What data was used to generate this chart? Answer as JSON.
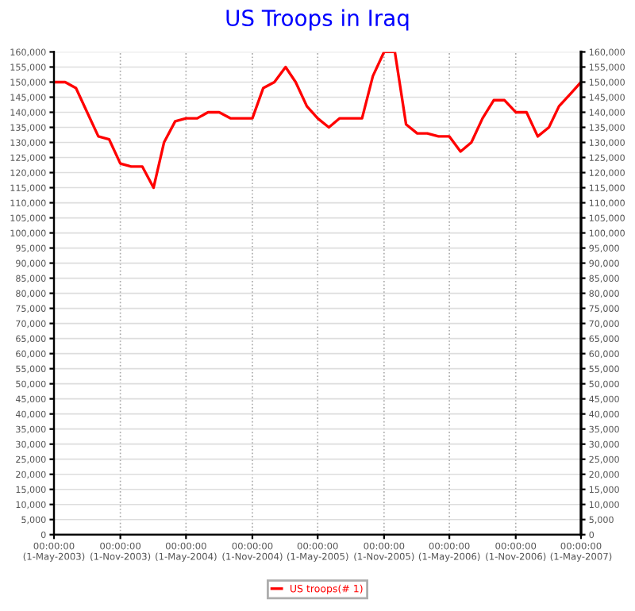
{
  "chart_data": {
    "type": "line",
    "title": "US Troops in Iraq",
    "x": [
      "2003-05",
      "2003-06",
      "2003-07",
      "2003-08",
      "2003-09",
      "2003-10",
      "2003-11",
      "2003-12",
      "2004-01",
      "2004-02",
      "2004-03",
      "2004-04",
      "2004-05",
      "2004-06",
      "2004-07",
      "2004-08",
      "2004-09",
      "2004-10",
      "2004-11",
      "2004-12",
      "2005-01",
      "2005-02",
      "2005-03",
      "2005-04",
      "2005-05",
      "2005-06",
      "2005-07",
      "2005-08",
      "2005-09",
      "2005-10",
      "2005-11",
      "2005-12",
      "2006-01",
      "2006-02",
      "2006-03",
      "2006-04",
      "2006-05",
      "2006-06",
      "2006-07",
      "2006-08",
      "2006-09",
      "2006-10",
      "2006-11",
      "2006-12",
      "2007-01",
      "2007-02",
      "2007-03",
      "2007-04",
      "2007-05"
    ],
    "series": [
      {
        "name": "US troops(# 1)",
        "color": "#ff0000",
        "values": [
          150000,
          150000,
          148000,
          140000,
          132000,
          131000,
          123000,
          122000,
          122000,
          115000,
          130000,
          137000,
          138000,
          138000,
          140000,
          140000,
          138000,
          138000,
          138000,
          148000,
          150000,
          155000,
          150000,
          142000,
          138000,
          135000,
          138000,
          138000,
          138000,
          152000,
          160000,
          160000,
          136000,
          133000,
          133000,
          132000,
          132000,
          127000,
          130000,
          138000,
          144000,
          144000,
          140000,
          140000,
          132000,
          135000,
          142000,
          146000,
          150000
        ]
      }
    ],
    "xlim": [
      "2003-05-01",
      "2007-05-01"
    ],
    "xticks": [
      {
        "value": "2003-05-01",
        "label": "00:00:00\n(1-May-2003)"
      },
      {
        "value": "2003-11-01",
        "label": "00:00:00\n(1-Nov-2003)"
      },
      {
        "value": "2004-05-01",
        "label": "00:00:00\n(1-May-2004)"
      },
      {
        "value": "2004-11-01",
        "label": "00:00:00\n(1-Nov-2004)"
      },
      {
        "value": "2005-05-01",
        "label": "00:00:00\n(1-May-2005)"
      },
      {
        "value": "2005-11-01",
        "label": "00:00:00\n(1-Nov-2005)"
      },
      {
        "value": "2006-05-01",
        "label": "00:00:00\n(1-May-2006)"
      },
      {
        "value": "2006-11-01",
        "label": "00:00:00\n(1-Nov-2006)"
      },
      {
        "value": "2007-05-01",
        "label": "00:00:00\n(1-May-2007)"
      }
    ],
    "ylim": [
      0,
      160000
    ],
    "yticks": [
      0,
      {
        "value": 5000,
        "label": "5,000"
      },
      {
        "value": 10000,
        "label": "10,000"
      },
      {
        "value": 15000,
        "label": "15,000"
      },
      {
        "value": 20000,
        "label": "20,000"
      },
      {
        "value": 25000,
        "label": "25,000"
      },
      {
        "value": 30000,
        "label": "30,000"
      },
      {
        "value": 35000,
        "label": "35,000"
      },
      {
        "value": 40000,
        "label": "40,000"
      },
      {
        "value": 45000,
        "label": "45,000"
      },
      {
        "value": 50000,
        "label": "50,000"
      },
      {
        "value": 55000,
        "label": "55,000"
      },
      {
        "value": 60000,
        "label": "60,000"
      },
      {
        "value": 65000,
        "label": "65,000"
      },
      {
        "value": 70000,
        "label": "70,000"
      },
      {
        "value": 75000,
        "label": "75,000"
      },
      {
        "value": 80000,
        "label": "80,000"
      },
      {
        "value": 85000,
        "label": "85,000"
      },
      {
        "value": 90000,
        "label": "90,000"
      },
      {
        "value": 95000,
        "label": "95,000"
      },
      {
        "value": 100000,
        "label": "100,000"
      },
      {
        "value": 105000,
        "label": "105,000"
      },
      {
        "value": 110000,
        "label": "110,000"
      },
      {
        "value": 115000,
        "label": "115,000"
      },
      {
        "value": 120000,
        "label": "120,000"
      },
      {
        "value": 125000,
        "label": "125,000"
      },
      {
        "value": 130000,
        "label": "130,000"
      },
      {
        "value": 135000,
        "label": "135,000"
      },
      {
        "value": 140000,
        "label": "140,000"
      },
      {
        "value": 145000,
        "label": "145,000"
      },
      {
        "value": 150000,
        "label": "150,000"
      },
      {
        "value": 155000,
        "label": "155,000"
      },
      {
        "value": 160000,
        "label": "160,000"
      }
    ],
    "y2lim": [
      0,
      160000
    ],
    "y2ticks": [
      0,
      {
        "value": 5000,
        "label": "5,000"
      },
      {
        "value": 10000,
        "label": "10,000"
      },
      {
        "value": 15000,
        "label": "15,000"
      },
      {
        "value": 20000,
        "label": "20,000"
      },
      {
        "value": 25000,
        "label": "25,000"
      },
      {
        "value": 30000,
        "label": "30,000"
      },
      {
        "value": 35000,
        "label": "35,000"
      },
      {
        "value": 40000,
        "label": "40,000"
      },
      {
        "value": 45000,
        "label": "45,000"
      },
      {
        "value": 50000,
        "label": "50,000"
      },
      {
        "value": 55000,
        "label": "55,000"
      },
      {
        "value": 60000,
        "label": "60,000"
      },
      {
        "value": 65000,
        "label": "65,000"
      },
      {
        "value": 70000,
        "label": "70,000"
      },
      {
        "value": 75000,
        "label": "75,000"
      },
      {
        "value": 80000,
        "label": "80,000"
      },
      {
        "value": 85000,
        "label": "85,000"
      },
      {
        "value": 90000,
        "label": "90,000"
      },
      {
        "value": 95000,
        "label": "95,000"
      },
      {
        "value": 100000,
        "label": "100,000"
      },
      {
        "value": 105000,
        "label": "105,000"
      },
      {
        "value": 110000,
        "label": "110,000"
      },
      {
        "value": 115000,
        "label": "115,000"
      },
      {
        "value": 120000,
        "label": "120,000"
      },
      {
        "value": 125000,
        "label": "125,000"
      },
      {
        "value": 130000,
        "label": "130,000"
      },
      {
        "value": 135000,
        "label": "135,000"
      },
      {
        "value": 140000,
        "label": "140,000"
      },
      {
        "value": 145000,
        "label": "145,000"
      },
      {
        "value": 150000,
        "label": "150,000"
      },
      {
        "value": 155000,
        "label": "155,000"
      },
      {
        "value": 160000,
        "label": "160,000"
      }
    ],
    "grid": true,
    "legend": "bottom",
    "marker": "none",
    "line_style": "solid"
  }
}
